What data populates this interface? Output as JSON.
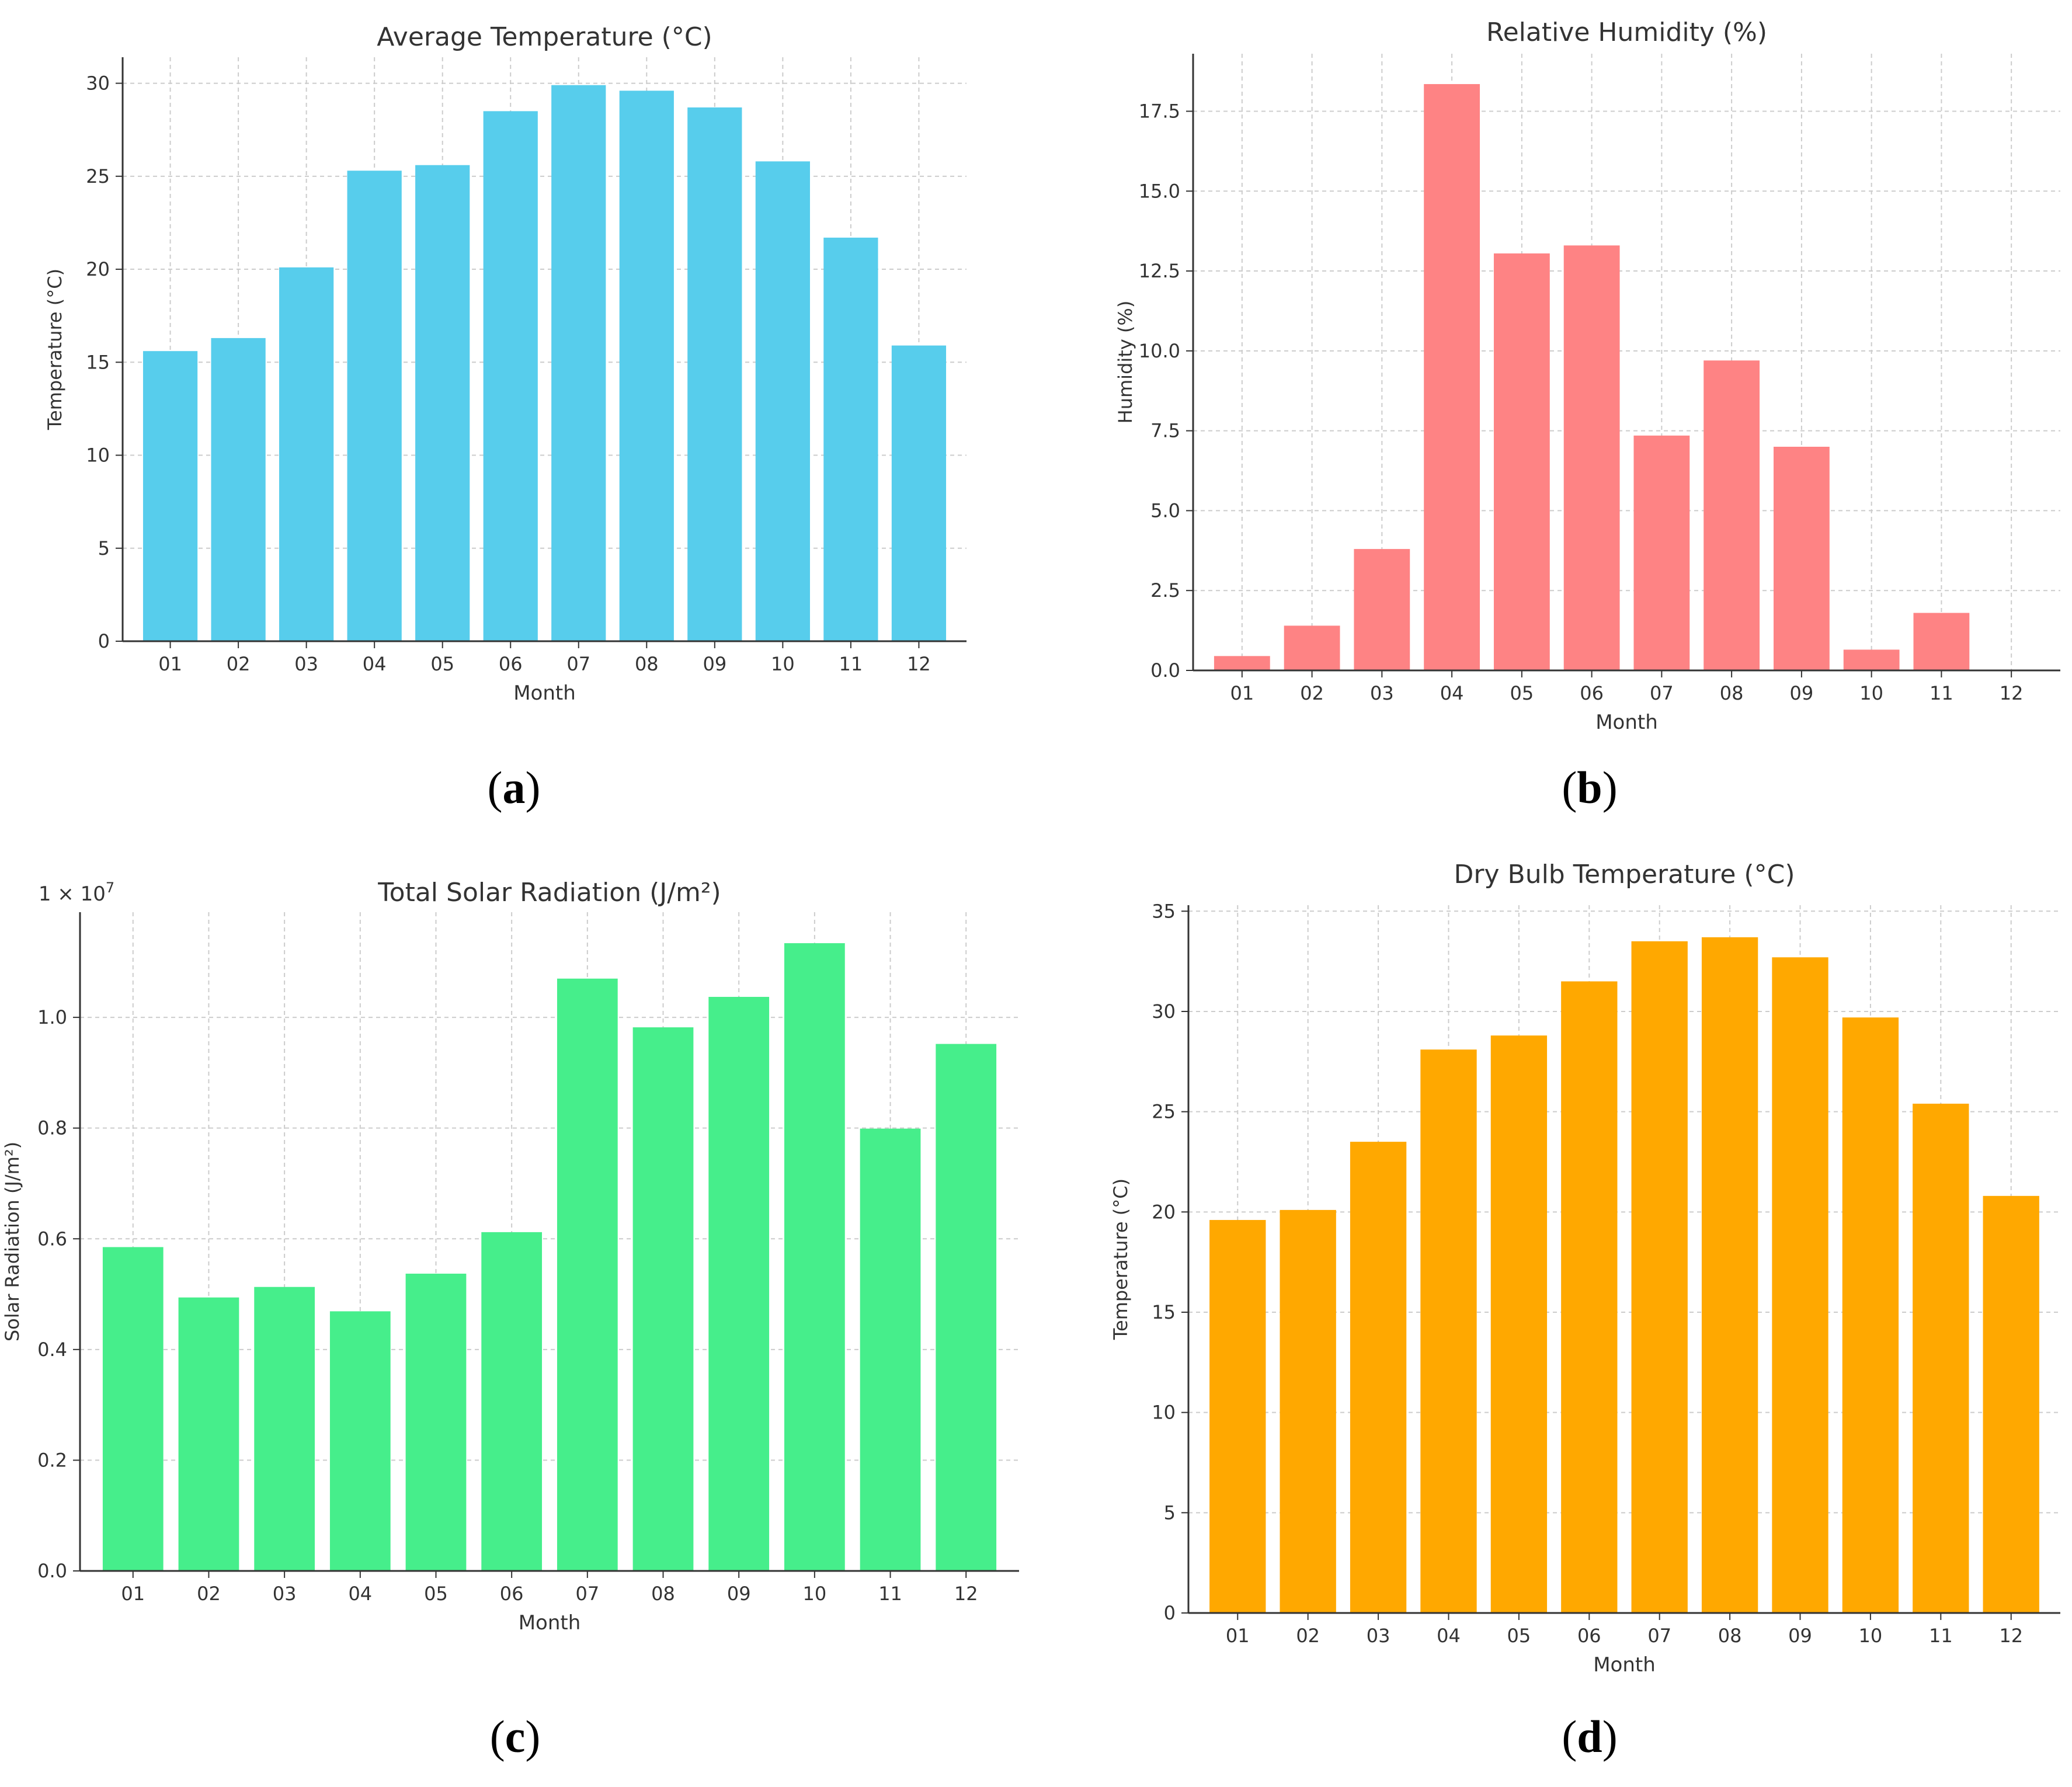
{
  "chart_data": [
    {
      "id": "a",
      "type": "bar",
      "caption": "a",
      "title": "Average Temperature (°C)",
      "xlabel": "Month",
      "ylabel": "Temperature (°C)",
      "categories": [
        "01",
        "02",
        "03",
        "04",
        "05",
        "06",
        "07",
        "08",
        "09",
        "10",
        "11",
        "12"
      ],
      "values": [
        15.6,
        16.3,
        20.1,
        25.3,
        25.6,
        28.5,
        29.9,
        29.6,
        28.7,
        25.8,
        21.7,
        15.9
      ],
      "ylim": [
        0,
        31.4
      ],
      "yticks": [
        0,
        5,
        10,
        15,
        20,
        25,
        30
      ],
      "ytick_labels": [
        "0",
        "5",
        "10",
        "15",
        "20",
        "25",
        "30"
      ],
      "offset_label": "",
      "color": "#57cdec",
      "grid": true
    },
    {
      "id": "b",
      "type": "bar",
      "caption": "b",
      "title": "Relative Humidity (%)",
      "xlabel": "Month",
      "ylabel": "Humidity (%)",
      "categories": [
        "01",
        "02",
        "03",
        "04",
        "05",
        "06",
        "07",
        "08",
        "09",
        "10",
        "11",
        "12"
      ],
      "values": [
        0.45,
        1.4,
        3.8,
        18.35,
        13.05,
        13.3,
        7.35,
        9.7,
        7.0,
        0.65,
        1.8,
        0.0
      ],
      "ylim": [
        0,
        19.3
      ],
      "yticks": [
        0,
        2.5,
        5.0,
        7.5,
        10.0,
        12.5,
        15.0,
        17.5
      ],
      "ytick_labels": [
        "0.0",
        "2.5",
        "5.0",
        "7.5",
        "10.0",
        "12.5",
        "15.0",
        "17.5"
      ],
      "offset_label": "",
      "color": "#fe8384",
      "grid": true
    },
    {
      "id": "c",
      "type": "bar",
      "caption": "c",
      "title": "Total Solar Radiation (J/m²)",
      "xlabel": "Month",
      "ylabel": "Solar Radiation (J/m²)",
      "categories": [
        "01",
        "02",
        "03",
        "04",
        "05",
        "06",
        "07",
        "08",
        "09",
        "10",
        "11",
        "12"
      ],
      "values": [
        5850000,
        4940000,
        5130000,
        4690000,
        5370000,
        6120000,
        10700000,
        9820000,
        10370000,
        11340000,
        7990000,
        9520000
      ],
      "ylim": [
        0,
        11900000
      ],
      "yticks": [
        0,
        2000000,
        4000000,
        6000000,
        8000000,
        10000000
      ],
      "ytick_labels": [
        "0.0",
        "0.2",
        "0.4",
        "0.6",
        "0.8",
        "1.0"
      ],
      "offset_label": "1 × 10^7",
      "color": "#46ee8b",
      "grid": true
    },
    {
      "id": "d",
      "type": "bar",
      "caption": "d",
      "title": "Dry Bulb Temperature (°C)",
      "xlabel": "Month",
      "ylabel": "Temperature (°C)",
      "categories": [
        "01",
        "02",
        "03",
        "04",
        "05",
        "06",
        "07",
        "08",
        "09",
        "10",
        "11",
        "12"
      ],
      "values": [
        19.6,
        20.1,
        23.5,
        28.1,
        28.8,
        31.5,
        33.5,
        33.7,
        32.7,
        29.7,
        25.4,
        20.8
      ],
      "ylim": [
        0,
        35.3
      ],
      "yticks": [
        0,
        5,
        10,
        15,
        20,
        25,
        30,
        35
      ],
      "ytick_labels": [
        "0",
        "5",
        "10",
        "15",
        "20",
        "25",
        "30",
        "35"
      ],
      "offset_label": "",
      "color": "#ffa800",
      "grid": true
    }
  ]
}
